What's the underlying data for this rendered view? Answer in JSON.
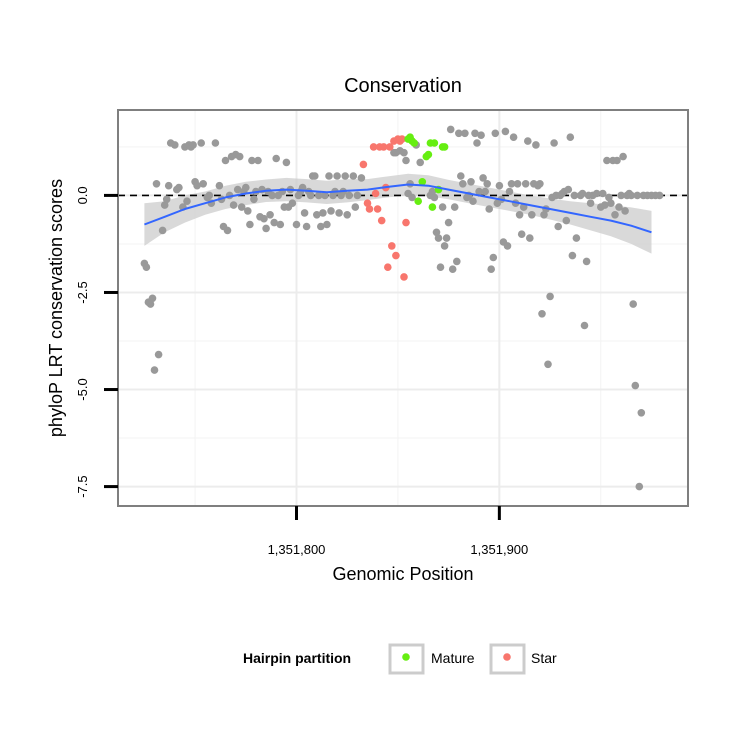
{
  "chart_data": {
    "type": "scatter",
    "title": "Conservation",
    "xlabel": "Genomic Position",
    "ylabel": "phyloP LRT conservation scores",
    "xlim": [
      1351712,
      1351993
    ],
    "ylim": [
      -8.0,
      2.2
    ],
    "x_ticks": [
      {
        "value": 1351800,
        "label": "1,351,800"
      },
      {
        "value": 1351900,
        "label": "1,351,900"
      }
    ],
    "y_ticks": [
      {
        "value": 0,
        "label": "0.0"
      },
      {
        "value": -2.5,
        "label": "-2.5"
      },
      {
        "value": -5.0,
        "label": "-5.0"
      },
      {
        "value": -7.5,
        "label": "-7.5"
      }
    ],
    "grid": true,
    "reference_line": {
      "y": 0,
      "style": "dashed"
    },
    "legend": {
      "title": "Hairpin partition",
      "position": "bottom",
      "entries": [
        {
          "label": "Mature",
          "color": "#66ee11"
        },
        {
          "label": "Star",
          "color": "#f8766d"
        }
      ]
    },
    "colors": {
      "other": "#999999",
      "mature": "#66ee11",
      "star": "#f8766d",
      "smooth": "#3366ff",
      "band": "#cccccc"
    },
    "series": [
      {
        "role": "other",
        "points": [
          [
            1351725,
            -1.75
          ],
          [
            1351726,
            -1.85
          ],
          [
            1351727,
            -2.75
          ],
          [
            1351728,
            -2.8
          ],
          [
            1351729,
            -2.65
          ],
          [
            1351730,
            -4.5
          ],
          [
            1351731,
            0.3
          ],
          [
            1351732,
            -4.1
          ],
          [
            1351734,
            -0.9
          ],
          [
            1351735,
            -0.25
          ],
          [
            1351736,
            -0.1
          ],
          [
            1351737,
            0.25
          ],
          [
            1351738,
            1.35
          ],
          [
            1351740,
            1.3
          ],
          [
            1351741,
            0.15
          ],
          [
            1351742,
            0.2
          ],
          [
            1351744,
            -0.3
          ],
          [
            1351745,
            1.25
          ],
          [
            1351746,
            -0.15
          ],
          [
            1351747,
            1.3
          ],
          [
            1351748,
            1.25
          ],
          [
            1351749,
            1.3
          ],
          [
            1351750,
            0.35
          ],
          [
            1351751,
            0.25
          ],
          [
            1351753,
            1.35
          ],
          [
            1351754,
            0.3
          ],
          [
            1351756,
            -0.05
          ],
          [
            1351757,
            0.0
          ],
          [
            1351758,
            -0.2
          ],
          [
            1351760,
            1.35
          ],
          [
            1351762,
            0.25
          ],
          [
            1351763,
            -0.1
          ],
          [
            1351764,
            -0.8
          ],
          [
            1351765,
            0.9
          ],
          [
            1351766,
            -0.9
          ],
          [
            1351767,
            0.0
          ],
          [
            1351768,
            1.0
          ],
          [
            1351769,
            -0.25
          ],
          [
            1351770,
            1.05
          ],
          [
            1351771,
            0.15
          ],
          [
            1351772,
            1.0
          ],
          [
            1351773,
            -0.3
          ],
          [
            1351774,
            0.1
          ],
          [
            1351775,
            0.2
          ],
          [
            1351776,
            -0.4
          ],
          [
            1351777,
            -0.75
          ],
          [
            1351778,
            0.9
          ],
          [
            1351779,
            -0.1
          ],
          [
            1351780,
            0.1
          ],
          [
            1351781,
            0.9
          ],
          [
            1351782,
            -0.55
          ],
          [
            1351783,
            0.15
          ],
          [
            1351784,
            -0.6
          ],
          [
            1351785,
            -0.85
          ],
          [
            1351786,
            0.1
          ],
          [
            1351787,
            -0.5
          ],
          [
            1351788,
            0.0
          ],
          [
            1351789,
            -0.7
          ],
          [
            1351790,
            0.95
          ],
          [
            1351791,
            0.0
          ],
          [
            1351792,
            -0.75
          ],
          [
            1351793,
            0.1
          ],
          [
            1351794,
            -0.3
          ],
          [
            1351795,
            0.85
          ],
          [
            1351796,
            -0.3
          ],
          [
            1351797,
            0.15
          ],
          [
            1351798,
            -0.2
          ],
          [
            1351800,
            -0.75
          ],
          [
            1351801,
            0.0
          ],
          [
            1351802,
            0.1
          ],
          [
            1351803,
            0.2
          ],
          [
            1351804,
            -0.45
          ],
          [
            1351805,
            -0.8
          ],
          [
            1351806,
            0.1
          ],
          [
            1351807,
            0.0
          ],
          [
            1351808,
            0.5
          ],
          [
            1351809,
            0.5
          ],
          [
            1351810,
            -0.5
          ],
          [
            1351811,
            0.0
          ],
          [
            1351812,
            -0.8
          ],
          [
            1351813,
            -0.45
          ],
          [
            1351814,
            0.0
          ],
          [
            1351815,
            -0.75
          ],
          [
            1351816,
            0.5
          ],
          [
            1351817,
            -0.4
          ],
          [
            1351818,
            0.0
          ],
          [
            1351819,
            0.1
          ],
          [
            1351820,
            0.5
          ],
          [
            1351821,
            -0.45
          ],
          [
            1351822,
            0.0
          ],
          [
            1351823,
            0.1
          ],
          [
            1351824,
            0.5
          ],
          [
            1351825,
            -0.5
          ],
          [
            1351826,
            0.0
          ],
          [
            1351828,
            0.5
          ],
          [
            1351829,
            -0.3
          ],
          [
            1351830,
            0.0
          ],
          [
            1351832,
            0.45
          ],
          [
            1351848,
            1.1
          ],
          [
            1351849,
            1.1
          ],
          [
            1351851,
            1.15
          ],
          [
            1351853,
            1.1
          ],
          [
            1351854,
            0.9
          ],
          [
            1351855,
            0.05
          ],
          [
            1351856,
            0.3
          ],
          [
            1351857,
            -0.05
          ],
          [
            1351859,
            1.3
          ],
          [
            1351861,
            0.85
          ],
          [
            1351866,
            0.0
          ],
          [
            1351867,
            0.1
          ],
          [
            1351868,
            -0.05
          ],
          [
            1351869,
            -0.95
          ],
          [
            1351870,
            -1.1
          ],
          [
            1351871,
            -1.85
          ],
          [
            1351872,
            -0.3
          ],
          [
            1351873,
            -1.3
          ],
          [
            1351874,
            -1.1
          ],
          [
            1351875,
            -0.7
          ],
          [
            1351876,
            1.7
          ],
          [
            1351877,
            -1.9
          ],
          [
            1351878,
            -0.3
          ],
          [
            1351879,
            -1.7
          ],
          [
            1351880,
            1.6
          ],
          [
            1351881,
            0.5
          ],
          [
            1351882,
            0.3
          ],
          [
            1351883,
            1.6
          ],
          [
            1351884,
            -0.05
          ],
          [
            1351885,
            0.0
          ],
          [
            1351886,
            0.35
          ],
          [
            1351887,
            -0.15
          ],
          [
            1351888,
            1.6
          ],
          [
            1351889,
            1.35
          ],
          [
            1351890,
            0.1
          ],
          [
            1351891,
            1.55
          ],
          [
            1351892,
            0.45
          ],
          [
            1351893,
            0.1
          ],
          [
            1351894,
            0.3
          ],
          [
            1351895,
            -0.35
          ],
          [
            1351896,
            -1.9
          ],
          [
            1351897,
            -1.6
          ],
          [
            1351898,
            1.6
          ],
          [
            1351899,
            -0.2
          ],
          [
            1351900,
            0.25
          ],
          [
            1351901,
            -0.1
          ],
          [
            1351902,
            -1.2
          ],
          [
            1351903,
            1.65
          ],
          [
            1351904,
            -1.3
          ],
          [
            1351905,
            0.1
          ],
          [
            1351906,
            0.3
          ],
          [
            1351907,
            1.5
          ],
          [
            1351908,
            -0.2
          ],
          [
            1351909,
            0.3
          ],
          [
            1351910,
            -0.5
          ],
          [
            1351911,
            -1.0
          ],
          [
            1351912,
            -0.3
          ],
          [
            1351913,
            0.3
          ],
          [
            1351914,
            1.4
          ],
          [
            1351915,
            -1.1
          ],
          [
            1351916,
            -0.5
          ],
          [
            1351917,
            0.3
          ],
          [
            1351918,
            1.3
          ],
          [
            1351919,
            0.25
          ],
          [
            1351920,
            0.3
          ],
          [
            1351921,
            -3.05
          ],
          [
            1351922,
            -0.5
          ],
          [
            1351923,
            -0.35
          ],
          [
            1351924,
            -4.35
          ],
          [
            1351925,
            -2.6
          ],
          [
            1351926,
            -0.05
          ],
          [
            1351927,
            1.35
          ],
          [
            1351928,
            0.0
          ],
          [
            1351929,
            -0.8
          ],
          [
            1351930,
            0.0
          ],
          [
            1351931,
            0.05
          ],
          [
            1351932,
            0.1
          ],
          [
            1351933,
            -0.65
          ],
          [
            1351934,
            0.15
          ],
          [
            1351935,
            1.5
          ],
          [
            1351936,
            -1.55
          ],
          [
            1351937,
            0.0
          ],
          [
            1351938,
            -1.1
          ],
          [
            1351940,
            0.0
          ],
          [
            1351941,
            0.05
          ],
          [
            1351942,
            -3.35
          ],
          [
            1351943,
            -1.7
          ],
          [
            1351944,
            0.0
          ],
          [
            1351945,
            -0.2
          ],
          [
            1351946,
            0.0
          ],
          [
            1351948,
            0.05
          ],
          [
            1351950,
            -0.3
          ],
          [
            1351951,
            0.05
          ],
          [
            1351952,
            -0.25
          ],
          [
            1351953,
            0.9
          ],
          [
            1351954,
            -0.05
          ],
          [
            1351955,
            -0.2
          ],
          [
            1351956,
            0.9
          ],
          [
            1351957,
            -0.5
          ],
          [
            1351958,
            0.9
          ],
          [
            1351959,
            -0.3
          ],
          [
            1351960,
            0.0
          ],
          [
            1351961,
            1.0
          ],
          [
            1351962,
            -0.4
          ],
          [
            1351963,
            0.0
          ],
          [
            1351964,
            0.05
          ],
          [
            1351965,
            0.0
          ],
          [
            1351966,
            -2.8
          ],
          [
            1351967,
            -4.9
          ],
          [
            1351968,
            0.0
          ],
          [
            1351969,
            -7.5
          ],
          [
            1351970,
            -5.6
          ],
          [
            1351971,
            0.0
          ],
          [
            1351973,
            0.0
          ],
          [
            1351975,
            0.0
          ],
          [
            1351977,
            0.0
          ],
          [
            1351979,
            0.0
          ]
        ]
      },
      {
        "name": "Star",
        "role": "star",
        "points": [
          [
            1351833,
            0.8
          ],
          [
            1351835,
            -0.2
          ],
          [
            1351836,
            -0.35
          ],
          [
            1351838,
            1.25
          ],
          [
            1351839,
            0.05
          ],
          [
            1351840,
            -0.35
          ],
          [
            1351841,
            1.25
          ],
          [
            1351842,
            -0.65
          ],
          [
            1351843,
            1.25
          ],
          [
            1351844,
            0.2
          ],
          [
            1351845,
            -1.85
          ],
          [
            1351846,
            1.25
          ],
          [
            1351847,
            -1.3
          ],
          [
            1351848,
            1.4
          ],
          [
            1351849,
            -1.55
          ],
          [
            1351850,
            1.45
          ],
          [
            1351851,
            1.4
          ],
          [
            1351852,
            1.45
          ],
          [
            1351853,
            -2.1
          ],
          [
            1351854,
            -0.7
          ]
        ]
      },
      {
        "name": "Mature",
        "role": "mature",
        "points": [
          [
            1351855,
            1.45
          ],
          [
            1351856,
            1.5
          ],
          [
            1351857,
            1.4
          ],
          [
            1351858,
            1.35
          ],
          [
            1351860,
            -0.15
          ],
          [
            1351862,
            0.35
          ],
          [
            1351864,
            1.0
          ],
          [
            1351865,
            1.05
          ],
          [
            1351866,
            1.35
          ],
          [
            1351867,
            -0.3
          ],
          [
            1351868,
            1.35
          ],
          [
            1351870,
            0.15
          ],
          [
            1351872,
            1.25
          ],
          [
            1351873,
            1.25
          ]
        ]
      }
    ],
    "smooth": {
      "x": [
        1351725,
        1351735,
        1351745,
        1351755,
        1351765,
        1351775,
        1351785,
        1351795,
        1351805,
        1351815,
        1351825,
        1351835,
        1351845,
        1351855,
        1351865,
        1351875,
        1351885,
        1351895,
        1351905,
        1351915,
        1351925,
        1351935,
        1351945,
        1351955,
        1351965,
        1351975
      ],
      "y": [
        -0.75,
        -0.55,
        -0.35,
        -0.2,
        -0.05,
        0.05,
        0.12,
        0.15,
        0.12,
        0.08,
        0.12,
        0.15,
        0.22,
        0.28,
        0.25,
        0.15,
        0.05,
        -0.05,
        -0.15,
        -0.25,
        -0.35,
        -0.45,
        -0.55,
        -0.65,
        -0.78,
        -0.95
      ],
      "ci_low": [
        -1.3,
        -0.95,
        -0.7,
        -0.5,
        -0.35,
        -0.25,
        -0.17,
        -0.15,
        -0.18,
        -0.22,
        -0.18,
        -0.12,
        -0.05,
        0.0,
        -0.02,
        -0.1,
        -0.2,
        -0.3,
        -0.4,
        -0.5,
        -0.62,
        -0.75,
        -0.9,
        -1.05,
        -1.25,
        -1.5
      ],
      "ci_high": [
        -0.2,
        -0.15,
        0.0,
        0.1,
        0.25,
        0.35,
        0.41,
        0.45,
        0.42,
        0.38,
        0.42,
        0.42,
        0.49,
        0.56,
        0.52,
        0.4,
        0.3,
        0.2,
        0.1,
        0.0,
        -0.08,
        -0.15,
        -0.2,
        -0.25,
        -0.31,
        -0.4
      ]
    }
  }
}
